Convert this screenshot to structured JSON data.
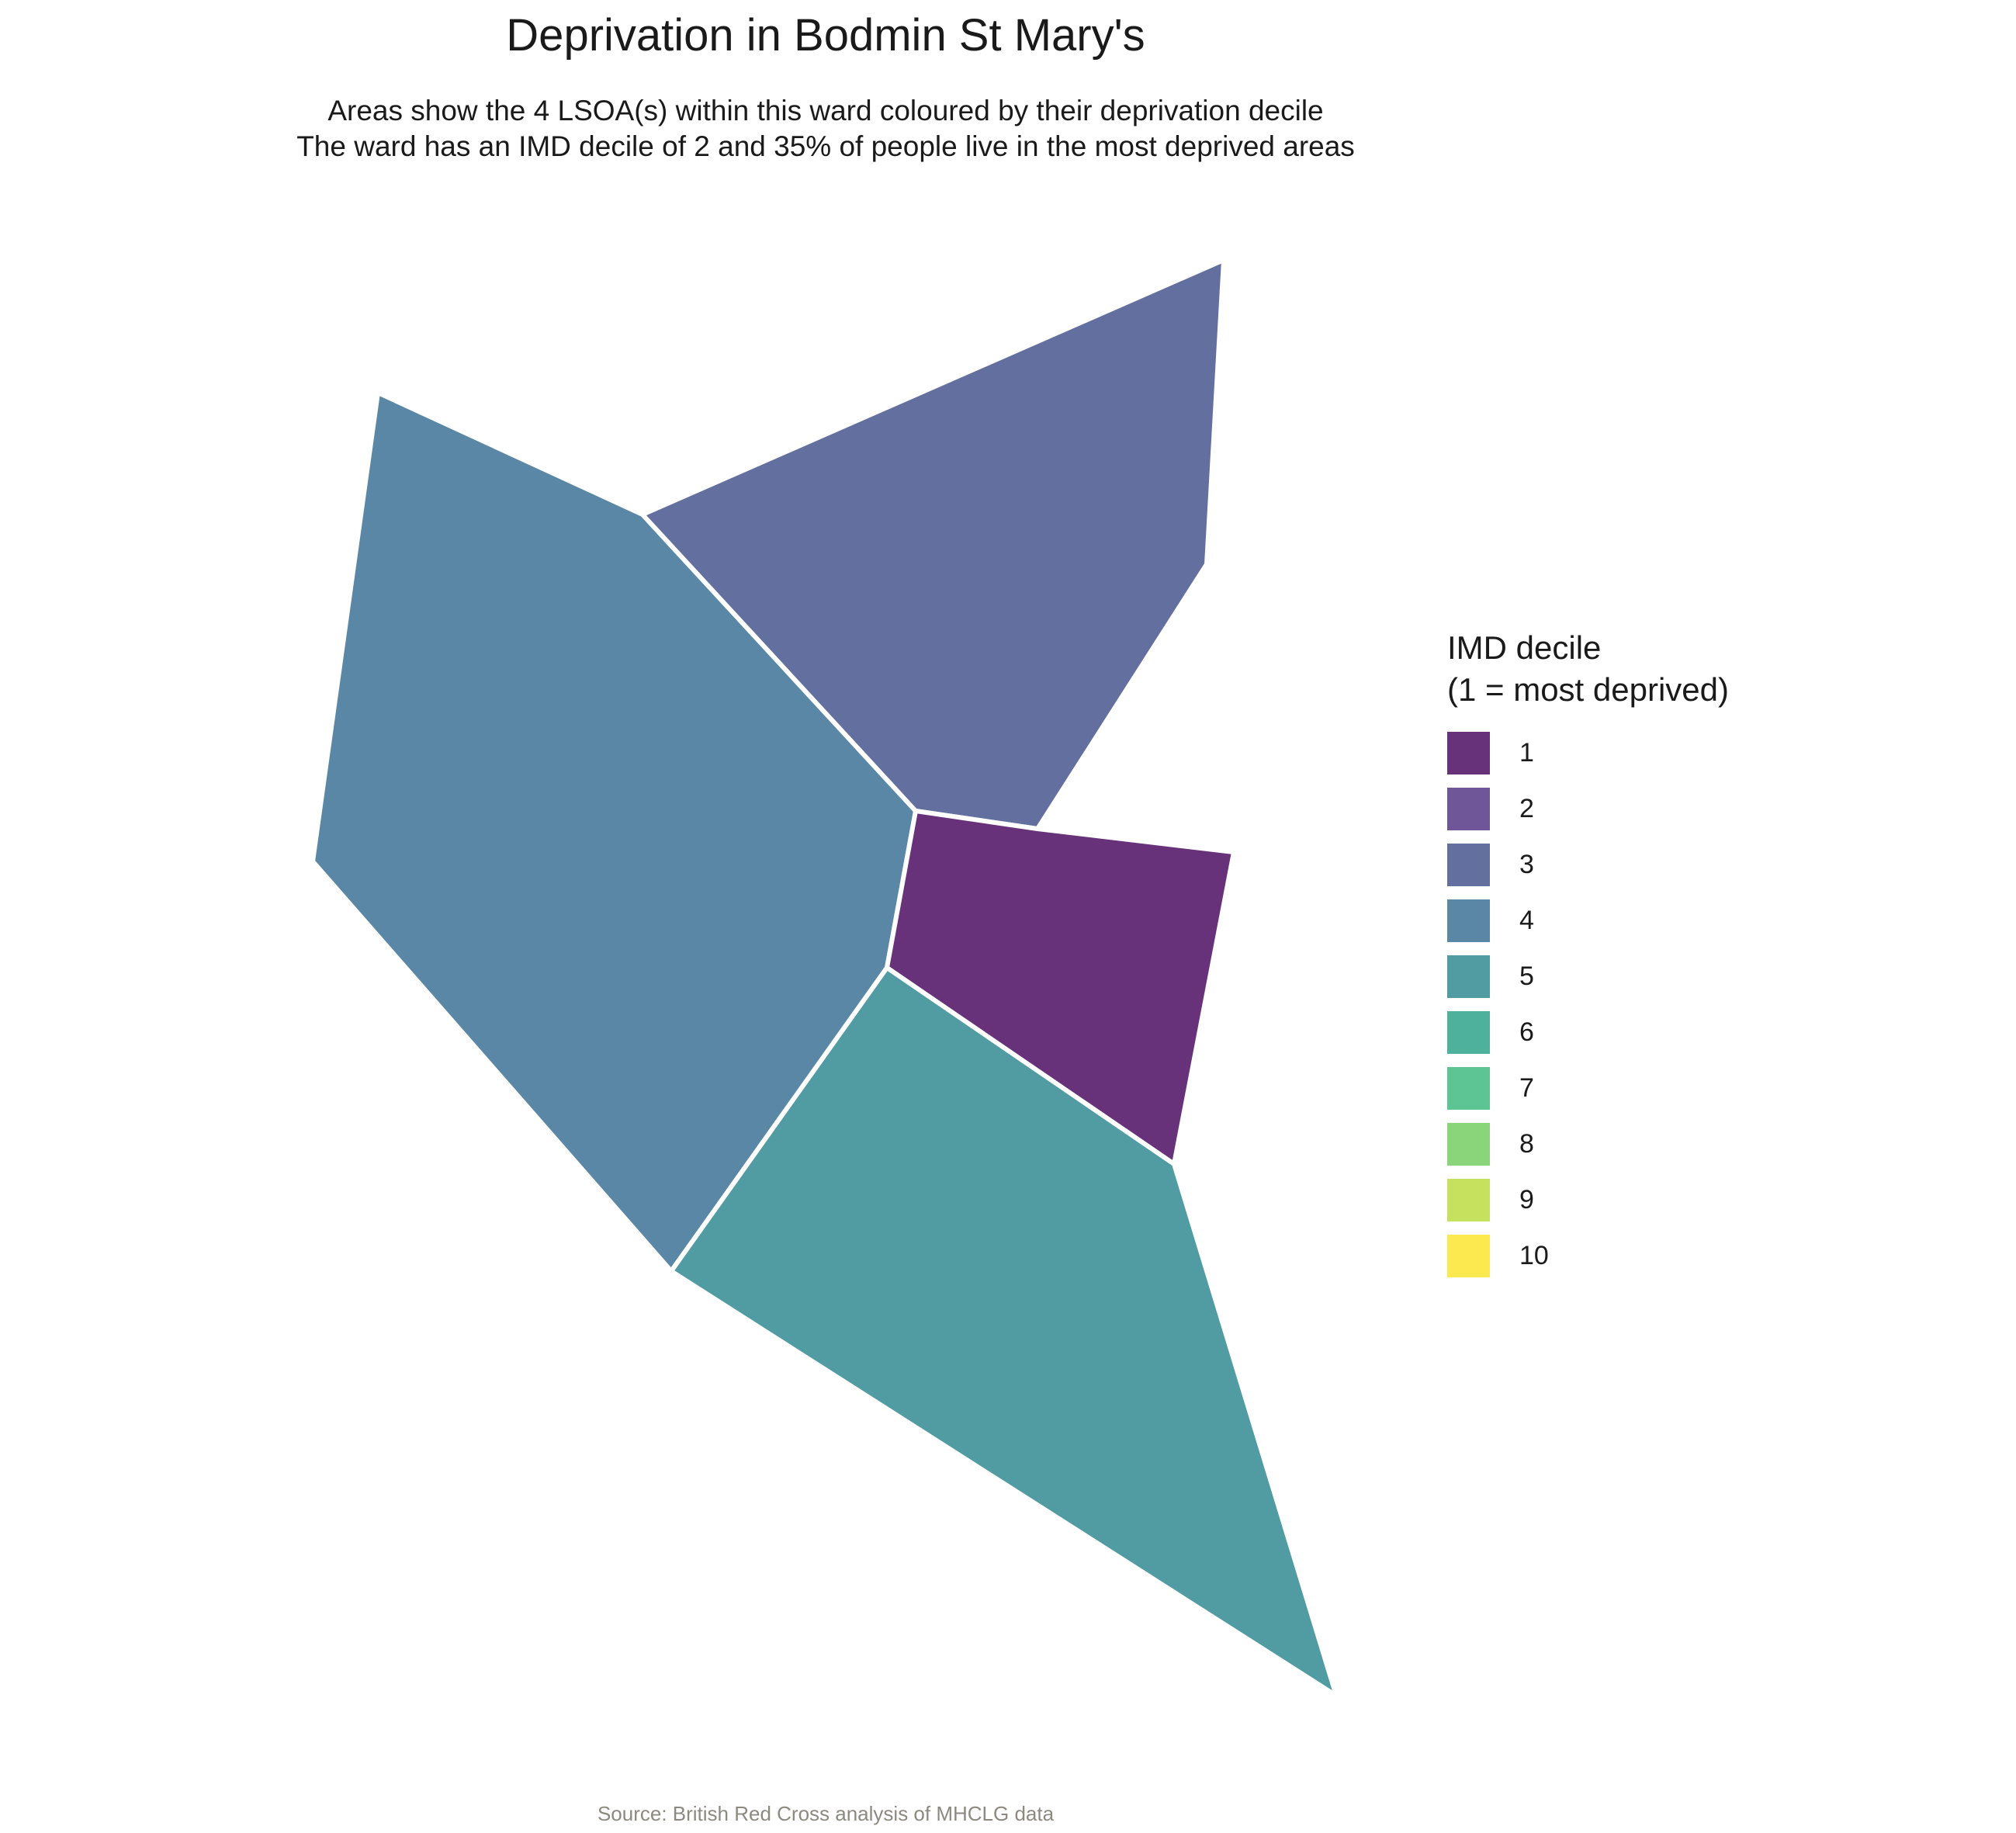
{
  "title": "Deprivation in Bodmin St Mary's",
  "subtitle_line1": "Areas show the 4 LSOA(s) within this ward coloured by their deprivation decile",
  "subtitle_line2": "The ward has an IMD decile of 2 and 35% of people live in the most deprived areas",
  "caption": "Source: British Red Cross analysis of MHCLG data",
  "legend": {
    "title_line1": "IMD decile",
    "title_line2": "(1 = most deprived)",
    "items": [
      {
        "label": "1",
        "color": "#67327A"
      },
      {
        "label": "2",
        "color": "#6F5698"
      },
      {
        "label": "3",
        "color": "#636F9E"
      },
      {
        "label": "4",
        "color": "#5A87A5"
      },
      {
        "label": "5",
        "color": "#519BA2"
      },
      {
        "label": "6",
        "color": "#4DB19B"
      },
      {
        "label": "7",
        "color": "#5DC493"
      },
      {
        "label": "8",
        "color": "#8AD47A"
      },
      {
        "label": "9",
        "color": "#C5E15E"
      },
      {
        "label": "10",
        "color": "#FCE94F"
      }
    ]
  },
  "areas": [
    {
      "decile": 4,
      "color": "#5A87A5"
    },
    {
      "decile": 3,
      "color": "#636F9E"
    },
    {
      "decile": 1,
      "color": "#67327A"
    },
    {
      "decile": 5,
      "color": "#519BA2"
    }
  ]
}
